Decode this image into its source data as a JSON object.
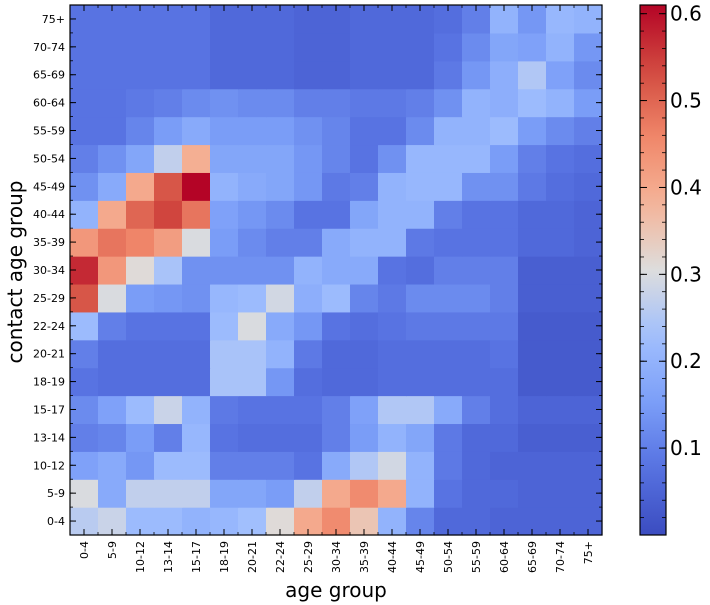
{
  "chart_data": {
    "type": "heatmap",
    "title": "",
    "xlabel": "age group",
    "ylabel": "contact age group",
    "x_categories": [
      "0-4",
      "5-9",
      "10-12",
      "13-14",
      "15-17",
      "18-19",
      "20-21",
      "22-24",
      "25-29",
      "30-34",
      "35-39",
      "40-44",
      "45-49",
      "50-54",
      "55-59",
      "60-64",
      "65-69",
      "70-74",
      "75+"
    ],
    "y_categories": [
      "0-4",
      "5-9",
      "10-12",
      "13-14",
      "15-17",
      "18-19",
      "20-21",
      "22-24",
      "25-29",
      "30-34",
      "35-39",
      "40-44",
      "45-49",
      "50-54",
      "55-59",
      "60-64",
      "65-69",
      "70-74",
      "75+"
    ],
    "colormap": "coolwarm",
    "value_range": [
      0.0,
      0.61
    ],
    "colorbar_ticks": [
      0.1,
      0.2,
      0.3,
      0.4,
      0.5,
      0.6
    ],
    "colorbar_tick_labels": [
      "0.1",
      "0.2",
      "0.3",
      "0.4",
      "0.5",
      "0.6"
    ],
    "values": [
      [
        0.26,
        0.28,
        0.22,
        0.22,
        0.2,
        0.21,
        0.23,
        0.31,
        0.4,
        0.45,
        0.35,
        0.2,
        0.11,
        0.06,
        0.06,
        0.05,
        0.05,
        0.05,
        0.05
      ],
      [
        0.3,
        0.18,
        0.27,
        0.27,
        0.27,
        0.17,
        0.17,
        0.15,
        0.27,
        0.4,
        0.45,
        0.4,
        0.2,
        0.08,
        0.06,
        0.06,
        0.05,
        0.05,
        0.05
      ],
      [
        0.16,
        0.18,
        0.14,
        0.22,
        0.22,
        0.1,
        0.1,
        0.1,
        0.08,
        0.18,
        0.25,
        0.29,
        0.2,
        0.09,
        0.06,
        0.05,
        0.05,
        0.05,
        0.05
      ],
      [
        0.1,
        0.11,
        0.15,
        0.1,
        0.21,
        0.08,
        0.07,
        0.07,
        0.07,
        0.1,
        0.15,
        0.2,
        0.17,
        0.09,
        0.06,
        0.06,
        0.04,
        0.04,
        0.04
      ],
      [
        0.12,
        0.16,
        0.22,
        0.28,
        0.2,
        0.09,
        0.08,
        0.08,
        0.08,
        0.1,
        0.16,
        0.25,
        0.25,
        0.18,
        0.1,
        0.07,
        0.05,
        0.05,
        0.05
      ],
      [
        0.08,
        0.07,
        0.07,
        0.07,
        0.07,
        0.24,
        0.24,
        0.14,
        0.07,
        0.06,
        0.06,
        0.07,
        0.07,
        0.07,
        0.07,
        0.07,
        0.03,
        0.03,
        0.03
      ],
      [
        0.1,
        0.07,
        0.07,
        0.07,
        0.07,
        0.24,
        0.24,
        0.2,
        0.09,
        0.06,
        0.06,
        0.07,
        0.07,
        0.07,
        0.07,
        0.08,
        0.03,
        0.03,
        0.03
      ],
      [
        0.22,
        0.1,
        0.08,
        0.08,
        0.08,
        0.22,
        0.3,
        0.18,
        0.14,
        0.08,
        0.07,
        0.08,
        0.09,
        0.09,
        0.09,
        0.09,
        0.03,
        0.03,
        0.03
      ],
      [
        0.52,
        0.3,
        0.15,
        0.14,
        0.13,
        0.21,
        0.22,
        0.29,
        0.19,
        0.22,
        0.11,
        0.09,
        0.12,
        0.12,
        0.12,
        0.1,
        0.04,
        0.04,
        0.04
      ],
      [
        0.57,
        0.43,
        0.31,
        0.24,
        0.13,
        0.13,
        0.13,
        0.13,
        0.2,
        0.18,
        0.18,
        0.08,
        0.07,
        0.1,
        0.1,
        0.1,
        0.04,
        0.04,
        0.04
      ],
      [
        0.43,
        0.48,
        0.46,
        0.42,
        0.3,
        0.15,
        0.12,
        0.1,
        0.1,
        0.18,
        0.2,
        0.2,
        0.09,
        0.08,
        0.08,
        0.08,
        0.06,
        0.06,
        0.05
      ],
      [
        0.2,
        0.4,
        0.5,
        0.54,
        0.48,
        0.16,
        0.14,
        0.12,
        0.08,
        0.08,
        0.17,
        0.2,
        0.2,
        0.1,
        0.08,
        0.08,
        0.06,
        0.06,
        0.05
      ],
      [
        0.13,
        0.18,
        0.4,
        0.52,
        0.61,
        0.2,
        0.18,
        0.17,
        0.14,
        0.09,
        0.1,
        0.2,
        0.21,
        0.21,
        0.13,
        0.13,
        0.09,
        0.07,
        0.06
      ],
      [
        0.1,
        0.13,
        0.17,
        0.27,
        0.39,
        0.17,
        0.17,
        0.17,
        0.14,
        0.11,
        0.08,
        0.13,
        0.21,
        0.21,
        0.21,
        0.15,
        0.1,
        0.08,
        0.07
      ],
      [
        0.08,
        0.08,
        0.11,
        0.15,
        0.18,
        0.15,
        0.15,
        0.15,
        0.13,
        0.11,
        0.08,
        0.08,
        0.12,
        0.2,
        0.2,
        0.22,
        0.15,
        0.12,
        0.1
      ],
      [
        0.08,
        0.08,
        0.09,
        0.1,
        0.12,
        0.13,
        0.12,
        0.12,
        0.1,
        0.1,
        0.09,
        0.09,
        0.1,
        0.13,
        0.2,
        0.19,
        0.22,
        0.2,
        0.15
      ],
      [
        0.08,
        0.08,
        0.08,
        0.08,
        0.08,
        0.06,
        0.06,
        0.06,
        0.05,
        0.05,
        0.06,
        0.06,
        0.06,
        0.09,
        0.14,
        0.19,
        0.25,
        0.16,
        0.12
      ],
      [
        0.08,
        0.08,
        0.08,
        0.08,
        0.08,
        0.06,
        0.06,
        0.06,
        0.05,
        0.05,
        0.06,
        0.06,
        0.06,
        0.08,
        0.12,
        0.17,
        0.16,
        0.2,
        0.14
      ],
      [
        0.08,
        0.08,
        0.08,
        0.08,
        0.08,
        0.06,
        0.06,
        0.06,
        0.05,
        0.05,
        0.06,
        0.06,
        0.06,
        0.07,
        0.1,
        0.2,
        0.14,
        0.21,
        0.2
      ]
    ]
  }
}
